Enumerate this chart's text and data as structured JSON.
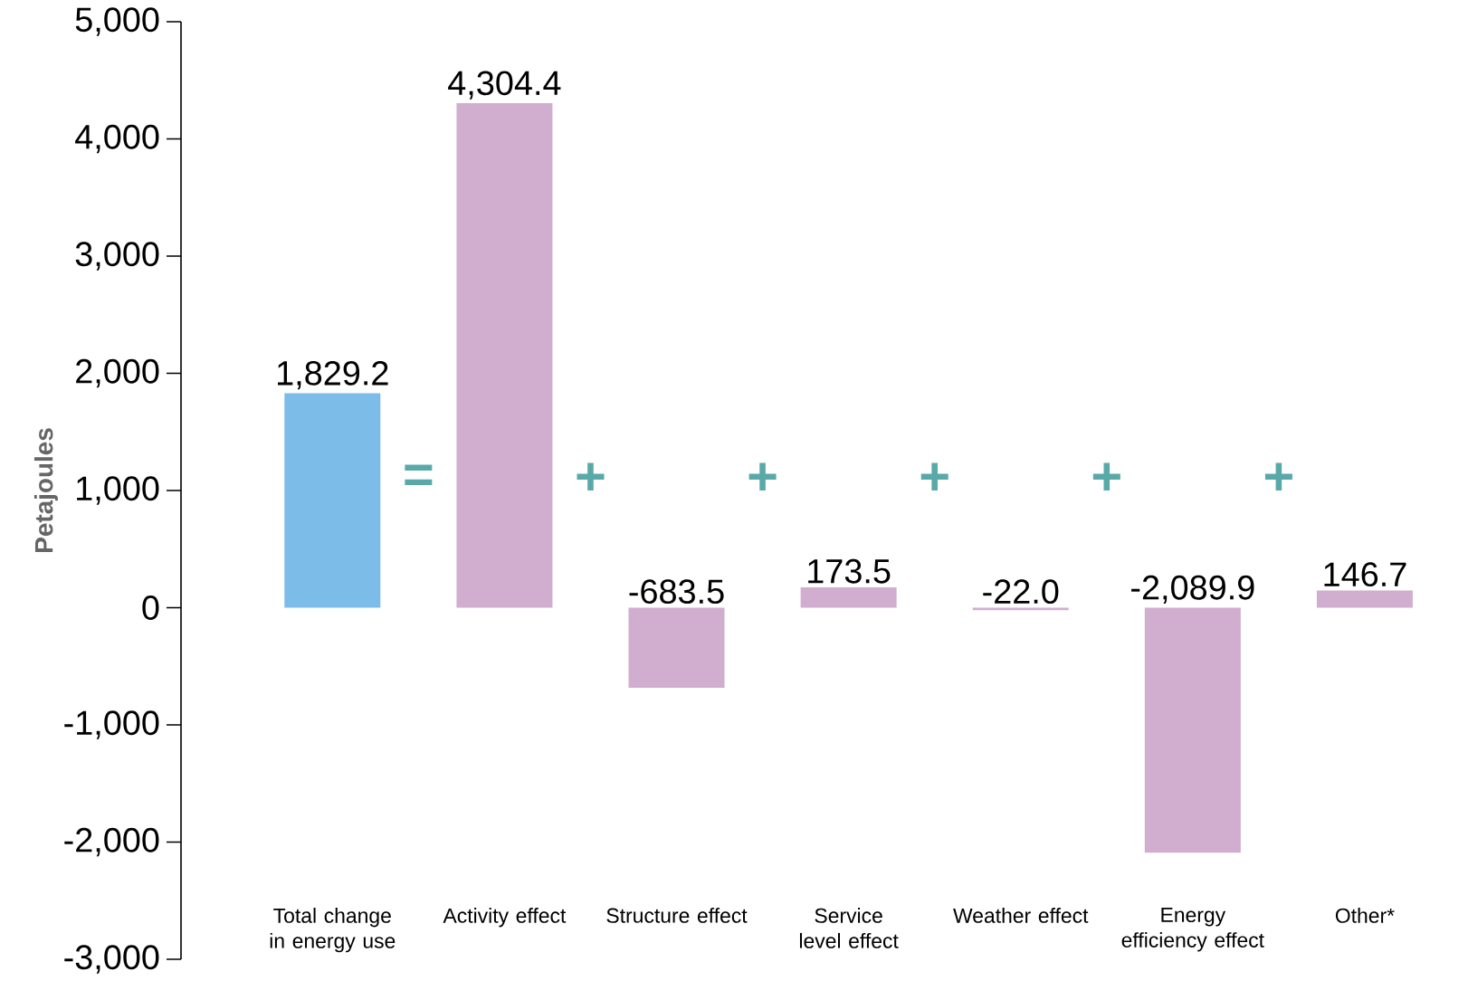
{
  "chart_data": {
    "type": "bar",
    "ylabel": "Petajoules",
    "categories": [
      "Total change in energy use",
      "Activity effect",
      "Structure effect",
      "Service level effect",
      "Weather effect",
      "Energy efficiency effect",
      "Other*"
    ],
    "values": [
      1829.2,
      4304.4,
      -683.5,
      173.5,
      -22.0,
      -2089.9,
      146.7
    ],
    "value_labels": [
      "1,829.2",
      "4,304.4",
      "-683.5",
      "173.5",
      "-22.0",
      "-2,089.9",
      "146.7"
    ],
    "colors": [
      "#7bbde8",
      "#d1aecf",
      "#d1aecf",
      "#d1aecf",
      "#d1aecf",
      "#d1aecf",
      "#d1aecf"
    ],
    "annotations": [
      "=",
      "+",
      "+",
      "+",
      "+",
      "+"
    ],
    "ylim": [
      -3000,
      5000
    ],
    "yticks": [
      {
        "value": -3000,
        "label": "-3,000"
      },
      {
        "value": -2000,
        "label": "-2,000"
      },
      {
        "value": -1000,
        "label": "-1,000"
      },
      {
        "value": 0,
        "label": "0"
      },
      {
        "value": 1000,
        "label": "1,000"
      },
      {
        "value": 2000,
        "label": "2,000"
      },
      {
        "value": 3000,
        "label": "3,000"
      },
      {
        "value": 4000,
        "label": "4,000"
      },
      {
        "value": 5000,
        "label": "5,000"
      }
    ],
    "grid": false
  }
}
